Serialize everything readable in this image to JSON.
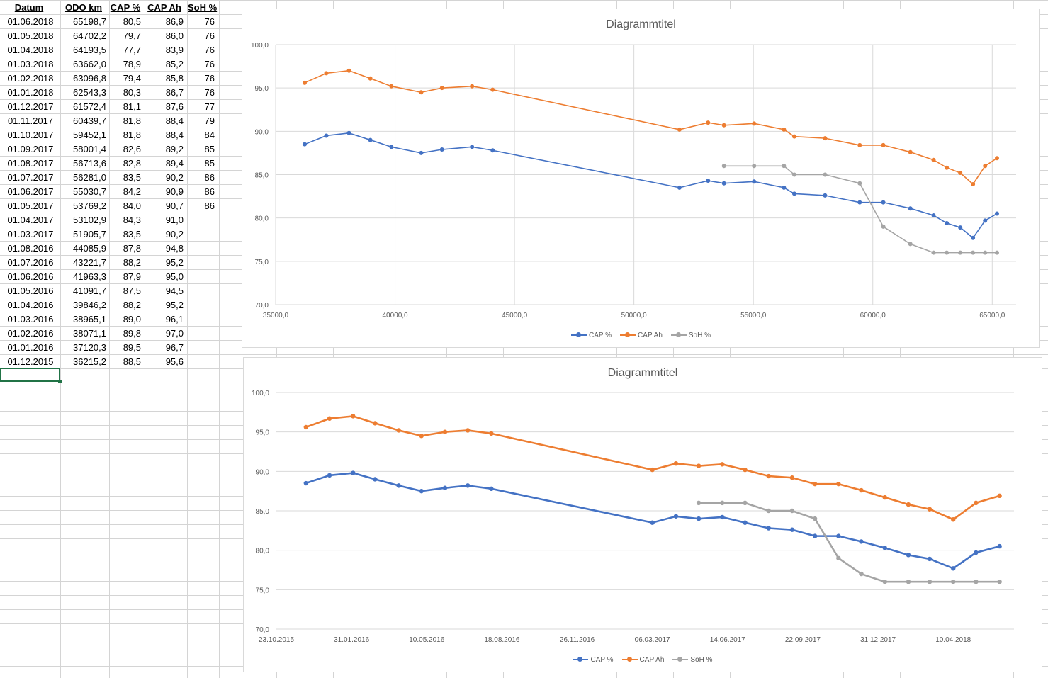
{
  "sheet": {
    "headers": [
      "Datum",
      "ODO km",
      "CAP %",
      "CAP Ah",
      "SoH %"
    ],
    "rows": [
      [
        "01.06.2018",
        "65198,7",
        "80,5",
        "86,9",
        "76"
      ],
      [
        "01.05.2018",
        "64702,2",
        "79,7",
        "86,0",
        "76"
      ],
      [
        "01.04.2018",
        "64193,5",
        "77,7",
        "83,9",
        "76"
      ],
      [
        "01.03.2018",
        "63662,0",
        "78,9",
        "85,2",
        "76"
      ],
      [
        "01.02.2018",
        "63096,8",
        "79,4",
        "85,8",
        "76"
      ],
      [
        "01.01.2018",
        "62543,3",
        "80,3",
        "86,7",
        "76"
      ],
      [
        "01.12.2017",
        "61572,4",
        "81,1",
        "87,6",
        "77"
      ],
      [
        "01.11.2017",
        "60439,7",
        "81,8",
        "88,4",
        "79"
      ],
      [
        "01.10.2017",
        "59452,1",
        "81,8",
        "88,4",
        "84"
      ],
      [
        "01.09.2017",
        "58001,4",
        "82,6",
        "89,2",
        "85"
      ],
      [
        "01.08.2017",
        "56713,6",
        "82,8",
        "89,4",
        "85"
      ],
      [
        "01.07.2017",
        "56281,0",
        "83,5",
        "90,2",
        "86"
      ],
      [
        "01.06.2017",
        "55030,7",
        "84,2",
        "90,9",
        "86"
      ],
      [
        "01.05.2017",
        "53769,2",
        "84,0",
        "90,7",
        "86"
      ],
      [
        "01.04.2017",
        "53102,9",
        "84,3",
        "91,0",
        ""
      ],
      [
        "01.03.2017",
        "51905,7",
        "83,5",
        "90,2",
        ""
      ],
      [
        "01.08.2016",
        "44085,9",
        "87,8",
        "94,8",
        ""
      ],
      [
        "01.07.2016",
        "43221,7",
        "88,2",
        "95,2",
        ""
      ],
      [
        "01.06.2016",
        "41963,3",
        "87,9",
        "95,0",
        ""
      ],
      [
        "01.05.2016",
        "41091,7",
        "87,5",
        "94,5",
        ""
      ],
      [
        "01.04.2016",
        "39846,2",
        "88,2",
        "95,2",
        ""
      ],
      [
        "01.03.2016",
        "38965,1",
        "89,0",
        "96,1",
        ""
      ],
      [
        "01.02.2016",
        "38071,1",
        "89,8",
        "97,0",
        ""
      ],
      [
        "01.01.2016",
        "37120,3",
        "89,5",
        "96,7",
        ""
      ],
      [
        "01.12.2015",
        "36215,2",
        "88,5",
        "95,6",
        ""
      ]
    ]
  },
  "chart_data": [
    {
      "type": "scatter",
      "title": "Diagrammtitel",
      "xlim": [
        35000,
        66000
      ],
      "ylim": [
        70,
        100
      ],
      "xticks": [
        "35000,0",
        "40000,0",
        "45000,0",
        "50000,0",
        "55000,0",
        "60000,0",
        "65000,0"
      ],
      "yticks": [
        "70,0",
        "75,0",
        "80,0",
        "85,0",
        "90,0",
        "95,0",
        "100,0"
      ],
      "legend": "bottom",
      "x": [
        65198.7,
        64702.2,
        64193.5,
        63662.0,
        63096.8,
        62543.3,
        61572.4,
        60439.7,
        59452.1,
        58001.4,
        56713.6,
        56281.0,
        55030.7,
        53769.2,
        53102.9,
        51905.7,
        44085.9,
        43221.7,
        41963.3,
        41091.7,
        39846.2,
        38965.1,
        38071.1,
        37120.3,
        36215.2
      ],
      "series": [
        {
          "name": "CAP %",
          "color": "#4472C4",
          "values": [
            80.5,
            79.7,
            77.7,
            78.9,
            79.4,
            80.3,
            81.1,
            81.8,
            81.8,
            82.6,
            82.8,
            83.5,
            84.2,
            84.0,
            84.3,
            83.5,
            87.8,
            88.2,
            87.9,
            87.5,
            88.2,
            89.0,
            89.8,
            89.5,
            88.5
          ]
        },
        {
          "name": "CAP Ah",
          "color": "#ED7D31",
          "values": [
            86.9,
            86.0,
            83.9,
            85.2,
            85.8,
            86.7,
            87.6,
            88.4,
            88.4,
            89.2,
            89.4,
            90.2,
            90.9,
            90.7,
            91.0,
            90.2,
            94.8,
            95.2,
            95.0,
            94.5,
            95.2,
            96.1,
            97.0,
            96.7,
            95.6
          ]
        },
        {
          "name": "SoH %",
          "color": "#A5A5A5",
          "values": [
            76,
            76,
            76,
            76,
            76,
            76,
            77,
            79,
            84,
            85,
            85,
            86,
            86,
            86,
            null,
            null,
            null,
            null,
            null,
            null,
            null,
            null,
            null,
            null,
            null
          ]
        }
      ]
    },
    {
      "type": "line",
      "title": "Diagrammtitel",
      "xlim": [
        "23.10.2015",
        "20.06.2018"
      ],
      "ylim": [
        70,
        100
      ],
      "xticks": [
        "23.10.2015",
        "31.01.2016",
        "10.05.2016",
        "18.08.2016",
        "26.11.2016",
        "06.03.2017",
        "14.06.2017",
        "22.09.2017",
        "31.12.2017",
        "10.04.2018"
      ],
      "yticks": [
        "70,0",
        "75,0",
        "80,0",
        "85,0",
        "90,0",
        "95,0",
        "100,0"
      ],
      "legend": "bottom",
      "x": [
        "01.06.2018",
        "01.05.2018",
        "01.04.2018",
        "01.03.2018",
        "01.02.2018",
        "01.01.2018",
        "01.12.2017",
        "01.11.2017",
        "01.10.2017",
        "01.09.2017",
        "01.08.2017",
        "01.07.2017",
        "01.06.2017",
        "01.05.2017",
        "01.04.2017",
        "01.03.2017",
        "01.08.2016",
        "01.07.2016",
        "01.06.2016",
        "01.05.2016",
        "01.04.2016",
        "01.03.2016",
        "01.02.2016",
        "01.01.2016",
        "01.12.2015"
      ],
      "series": [
        {
          "name": "CAP %",
          "color": "#4472C4",
          "values": [
            80.5,
            79.7,
            77.7,
            78.9,
            79.4,
            80.3,
            81.1,
            81.8,
            81.8,
            82.6,
            82.8,
            83.5,
            84.2,
            84.0,
            84.3,
            83.5,
            87.8,
            88.2,
            87.9,
            87.5,
            88.2,
            89.0,
            89.8,
            89.5,
            88.5
          ]
        },
        {
          "name": "CAP Ah",
          "color": "#ED7D31",
          "values": [
            86.9,
            86.0,
            83.9,
            85.2,
            85.8,
            86.7,
            87.6,
            88.4,
            88.4,
            89.2,
            89.4,
            90.2,
            90.9,
            90.7,
            91.0,
            90.2,
            94.8,
            95.2,
            95.0,
            94.5,
            95.2,
            96.1,
            97.0,
            96.7,
            95.6
          ]
        },
        {
          "name": "SoH %",
          "color": "#A5A5A5",
          "values": [
            76,
            76,
            76,
            76,
            76,
            76,
            77,
            79,
            84,
            85,
            85,
            86,
            86,
            86,
            null,
            null,
            null,
            null,
            null,
            null,
            null,
            null,
            null,
            null,
            null
          ]
        }
      ]
    }
  ]
}
